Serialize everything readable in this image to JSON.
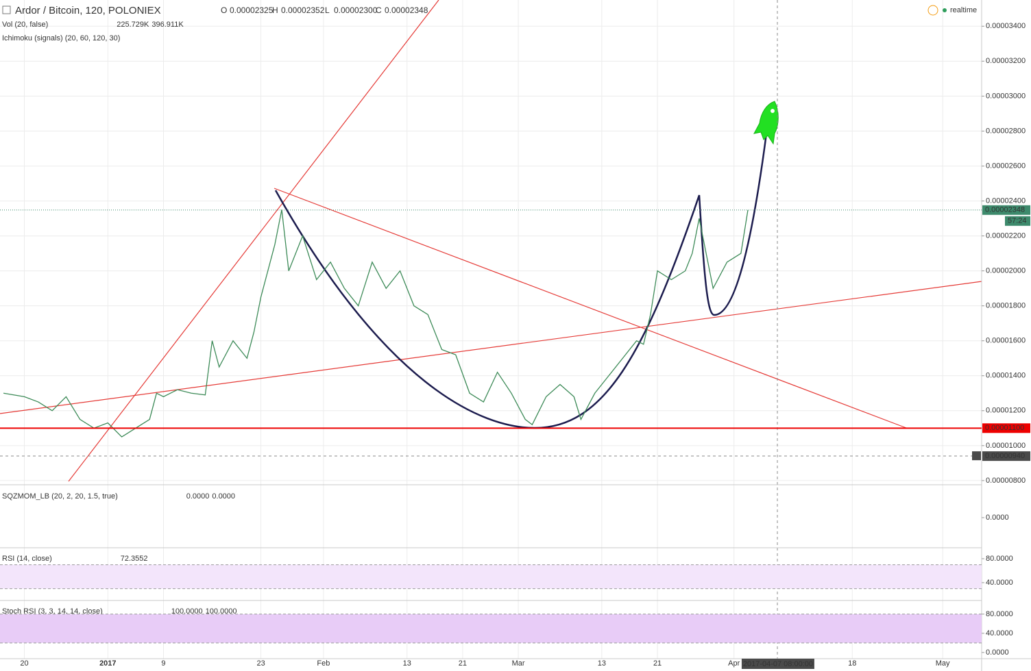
{
  "header": {
    "symbol": "Ardor / Bitcoin, 120, POLONIEX",
    "ohlc": [
      {
        "key": "O",
        "value": "0.00002325"
      },
      {
        "key": "H",
        "value": "0.00002352"
      },
      {
        "key": "L",
        "value": "0.00002300"
      },
      {
        "key": "C",
        "value": "0.00002348"
      }
    ],
    "status": "realtime"
  },
  "chart_data": {
    "type": "line",
    "color": "#3c8a57",
    "x": [
      -3,
      0,
      2,
      4,
      6,
      8,
      10,
      12,
      14,
      16,
      18,
      19,
      20,
      22,
      24,
      26,
      27,
      28,
      30,
      32,
      33,
      34,
      36,
      37,
      38,
      40,
      42,
      44,
      46,
      48,
      50,
      52,
      54,
      56,
      58,
      60,
      62,
      64,
      66,
      68,
      70,
      72,
      73,
      75,
      77,
      79,
      80,
      82,
      84,
      86,
      88,
      89,
      90,
      91,
      93,
      95,
      96,
      97,
      98,
      99,
      101,
      103,
      104
    ],
    "values": [
      1.3e-05,
      1.28e-05,
      1.25e-05,
      1.2e-05,
      1.28e-05,
      1.15e-05,
      1.1e-05,
      1.13e-05,
      1.05e-05,
      1.1e-05,
      1.15e-05,
      1.3e-05,
      1.28e-05,
      1.32e-05,
      1.3e-05,
      1.29e-05,
      1.6e-05,
      1.45e-05,
      1.6e-05,
      1.5e-05,
      1.65e-05,
      1.85e-05,
      2.15e-05,
      2.35e-05,
      2e-05,
      2.2e-05,
      1.95e-05,
      2.05e-05,
      1.9e-05,
      1.8e-05,
      2.05e-05,
      1.9e-05,
      2e-05,
      1.8e-05,
      1.75e-05,
      1.55e-05,
      1.52e-05,
      1.3e-05,
      1.25e-05,
      1.42e-05,
      1.3e-05,
      1.15e-05,
      1.12e-05,
      1.28e-05,
      1.35e-05,
      1.28e-05,
      1.15e-05,
      1.3e-05,
      1.4e-05,
      1.5e-05,
      1.6e-05,
      1.58e-05,
      1.75e-05,
      2e-05,
      1.95e-05,
      2e-05,
      2.1e-05,
      2.3e-05,
      2.1e-05,
      1.9e-05,
      2.05e-05,
      2.1e-05,
      2.348e-05
    ],
    "xlim": [
      -3.5,
      137.6
    ],
    "ylim": [
      7.8e-06,
      3.55e-05
    ],
    "xticks": [
      {
        "value": 0,
        "label": "20"
      },
      {
        "value": 12,
        "label": "2017"
      },
      {
        "value": 20,
        "label": "9"
      },
      {
        "value": 34,
        "label": "23"
      },
      {
        "value": 43,
        "label": "Feb"
      },
      {
        "value": 55,
        "label": "13"
      },
      {
        "value": 63,
        "label": "21"
      },
      {
        "value": 71,
        "label": "Mar"
      },
      {
        "value": 83,
        "label": "13"
      },
      {
        "value": 91,
        "label": "21"
      },
      {
        "value": 102,
        "label": "Apr"
      },
      {
        "value": 119,
        "label": "18"
      },
      {
        "value": 132,
        "label": "May"
      }
    ],
    "yticks": [
      {
        "value": 8e-06,
        "label": "0.00000800"
      },
      {
        "value": 1e-05,
        "label": "0.00001000"
      },
      {
        "value": 1.2e-05,
        "label": "0.00001200"
      },
      {
        "value": 1.4e-05,
        "label": "0.00001400"
      },
      {
        "value": 1.6e-05,
        "label": "0.00001600"
      },
      {
        "value": 1.8e-05,
        "label": "0.00001800"
      },
      {
        "value": 2e-05,
        "label": "0.00002000"
      },
      {
        "value": 2.2e-05,
        "label": "0.00002200"
      },
      {
        "value": 2.4e-05,
        "label": "0.00002400"
      },
      {
        "value": 2.6e-05,
        "label": "0.00002600"
      },
      {
        "value": 2.8e-05,
        "label": "0.00002800"
      },
      {
        "value": 3e-05,
        "label": "0.00003000"
      },
      {
        "value": 3.2e-05,
        "label": "0.00003200"
      },
      {
        "value": 3.4e-05,
        "label": "0.00003400"
      }
    ],
    "grid": true,
    "last_price": {
      "value": 2.348e-05,
      "label": "0.00002348"
    },
    "countdown": "57:24",
    "level": {
      "value": 1.1e-05,
      "label": "0.00001100"
    },
    "crosshair": {
      "x": 108.33,
      "time": "2017-04-07 08:00:00",
      "price": {
        "value": 9.4e-06,
        "label": "0.00000940"
      }
    }
  },
  "indicators": [
    {
      "name": "Vol (20, false)",
      "readouts": [
        "225.729K",
        "396.911K"
      ]
    },
    {
      "name": "Ichimoku (signals) (20, 60, 120, 30)"
    },
    {
      "name": "SQZMOM_LB (20, 2, 20, 1.5, true)",
      "readouts": [
        "0.0000",
        "0.0000"
      ],
      "ylim": [
        -7e-07,
        7e-07
      ],
      "yticks": [
        {
          "value": 0,
          "label": "0.0000"
        }
      ]
    },
    {
      "name": "RSI (14, close)",
      "readouts": [
        "72.3552"
      ],
      "band": [
        30,
        70
      ],
      "ylim": [
        11.4,
        96
      ],
      "yticks": [
        {
          "value": 40,
          "label": "40.0000"
        },
        {
          "value": 80,
          "label": "80.0000"
        }
      ]
    },
    {
      "name": "Stoch RSI (3, 3, 14, 14, close)",
      "readouts": [
        "100.0000",
        "100.0000"
      ],
      "band": [
        20,
        80
      ],
      "ylim": [
        -12.9,
        107
      ],
      "yticks": [
        {
          "value": 0,
          "label": "0.0000"
        },
        {
          "value": 40,
          "label": "40.0000"
        },
        {
          "value": 80,
          "label": "80.0000"
        }
      ]
    }
  ]
}
